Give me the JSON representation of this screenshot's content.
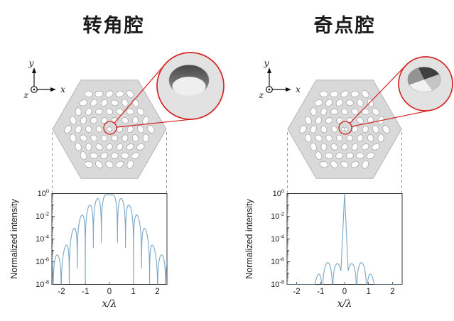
{
  "figure": {
    "background": "#ffffff",
    "colors": {
      "accent_red": "#d42422",
      "curve_blue": "#7ba7c7",
      "structure_fill": "#d9d9d9",
      "structure_edge": "#b5b5b5",
      "hole_fill": "#ffffff",
      "hole_edge": "#a8a8a8",
      "spine": "#3a3a3a",
      "dashed_guide": "#9a9a9a",
      "text": "#1a1a1a",
      "inset_fill": "#e2e2e2"
    }
  },
  "panels": [
    {
      "id": "corner-cavity",
      "title": "转角腔",
      "triad": {
        "up": "y",
        "right": "x",
        "out": "z"
      },
      "center_hole": "round",
      "inset_hole": "smooth-round-hole-3d",
      "plot": {
        "ylabel": "Normalized intensity",
        "xlabel": "x/λ",
        "x_tick_labels": [
          "-2",
          "-1",
          "0",
          "1",
          "2"
        ],
        "y_tick_exponents": [
          "0",
          "-2",
          "-4",
          "-6",
          "-8"
        ]
      }
    },
    {
      "id": "singularity-cavity",
      "title": "奇点腔",
      "triad": {
        "up": "y",
        "right": "x",
        "out": "z"
      },
      "center_hole": "bowtie",
      "inset_hole": "pinwheel-singular-hole-3d",
      "plot": {
        "ylabel": "Normalized intensity",
        "xlabel": "x/λ",
        "x_tick_labels": [
          "-2",
          "-1",
          "0",
          "1",
          "2"
        ],
        "y_tick_exponents": [
          "0",
          "-2",
          "-4",
          "-6",
          "-8"
        ]
      }
    }
  ],
  "chart_data": [
    {
      "type": "line",
      "title": "转角腔 normalized intensity profile",
      "xlabel": "x/λ",
      "ylabel": "Normalized intensity",
      "x_range": [
        -2.4,
        2.4
      ],
      "y_scale": "log10",
      "y_range": [
        1e-08,
        1
      ],
      "x_ticks": [
        -2,
        -1,
        0,
        1,
        2
      ],
      "y_ticks": [
        "10^0",
        "10^-2",
        "10^-4",
        "10^-6",
        "10^-8"
      ],
      "grid": false,
      "legend": null,
      "series_color": "#7ba7c7",
      "description": "Broad multi-lobed pattern: flat-topped main lobe near 10^0, side lobes every ~0.33 x/λ, envelope decays to ~1e-5 near |x/λ|=2, small edge lobes beyond",
      "lobe_peaks_x": [
        0,
        0.5,
        0.84,
        1.17,
        1.5,
        1.84,
        2.17
      ],
      "lobe_peaks_intensity": [
        0.8,
        0.35,
        0.09,
        0.012,
        0.0008,
        2.5e-05,
        4e-06
      ],
      "symmetric": true,
      "model": {
        "kind": "lobed",
        "flat_half": 0.1675,
        "null_spacing": 0.335,
        "env_offset_log10": -0.1,
        "env_quad_decades": 1.35,
        "env_floor_log10": -5.4,
        "null_depth_log10": -3.2
      }
    },
    {
      "type": "line",
      "title": "奇点腔 normalized intensity profile",
      "xlabel": "x/λ",
      "ylabel": "Normalized intensity",
      "x_range": [
        -2.4,
        2.4
      ],
      "y_scale": "log10",
      "y_range": [
        1e-08,
        1
      ],
      "x_ticks": [
        -2,
        -1,
        0,
        1,
        2
      ],
      "y_ticks": [
        "10^0",
        "10^-2",
        "10^-4",
        "10^-6",
        "10^-8"
      ],
      "grid": false,
      "legend": null,
      "series_color": "#7ba7c7",
      "description": "Extremely narrow central spike reaching 10^0 at x=0 (half-width ~0.04 x/λ at 1e-2), weak side lobes near 1e-6 at ±0.3 and ±0.7, ~1e-7.5 at ±1.15",
      "lobe_peaks_x": [
        0,
        0.29,
        0.72,
        1.15
      ],
      "lobe_peaks_intensity": [
        1,
        6e-07,
        9e-07,
        7e-08
      ],
      "symmetric": true,
      "model": {
        "kind": "spike",
        "spike_slope_decades_per_lambda": 45,
        "lobe_first_null": 0.07,
        "lobe_null_spacing": 0.43,
        "env_peak_log10": -6.05,
        "env_peak_x": 0.62,
        "env_quad_inner": 1.15,
        "env_quad_outer": 4.5,
        "null_depth_log10": -2.2
      }
    }
  ]
}
